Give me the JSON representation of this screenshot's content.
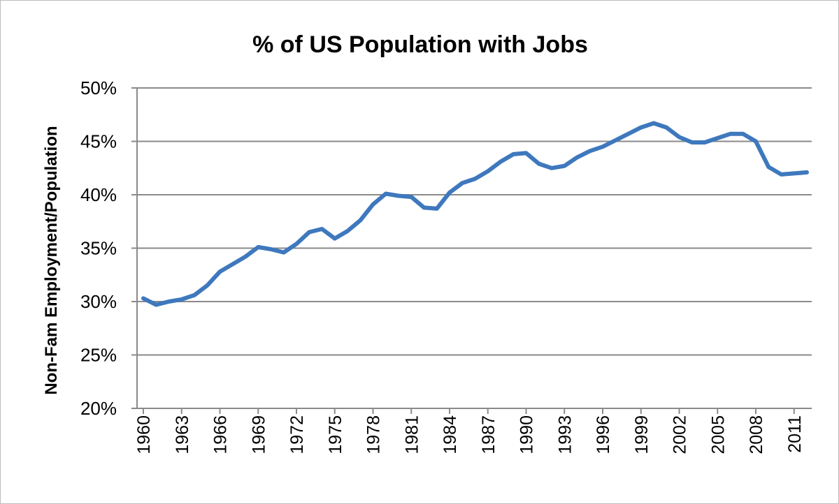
{
  "chart_data": {
    "type": "line",
    "title": "% of US Population with Jobs",
    "xlabel": "",
    "ylabel": "Non-Fam Employment/Population",
    "ylim": [
      20,
      50
    ],
    "yticks": [
      "20%",
      "25%",
      "30%",
      "35%",
      "40%",
      "45%",
      "50%"
    ],
    "ytick_values": [
      20,
      25,
      30,
      35,
      40,
      45,
      50
    ],
    "xticks": [
      "1960",
      "1963",
      "1966",
      "1969",
      "1972",
      "1975",
      "1978",
      "1981",
      "1984",
      "1987",
      "1990",
      "1993",
      "1996",
      "1999",
      "2002",
      "2005",
      "2008",
      "2011"
    ],
    "grid": true,
    "legend": "none",
    "line_color": "#3e78bd",
    "series": [
      {
        "name": "Non-Fam Employment/Population",
        "x": [
          1960,
          1961,
          1962,
          1963,
          1964,
          1965,
          1966,
          1967,
          1968,
          1969,
          1970,
          1971,
          1972,
          1973,
          1974,
          1975,
          1976,
          1977,
          1978,
          1979,
          1980,
          1981,
          1982,
          1983,
          1984,
          1985,
          1986,
          1987,
          1988,
          1989,
          1990,
          1991,
          1992,
          1993,
          1994,
          1995,
          1996,
          1997,
          1998,
          1999,
          2000,
          2001,
          2002,
          2003,
          2004,
          2005,
          2006,
          2007,
          2008,
          2009,
          2010,
          2011,
          2012
        ],
        "values": [
          30.3,
          29.7,
          30.0,
          30.2,
          30.6,
          31.5,
          32.8,
          33.5,
          34.2,
          35.1,
          34.9,
          34.6,
          35.4,
          36.5,
          36.8,
          35.9,
          36.6,
          37.6,
          39.1,
          40.1,
          39.9,
          39.8,
          38.8,
          38.7,
          40.2,
          41.1,
          41.5,
          42.2,
          43.1,
          43.8,
          43.9,
          42.9,
          42.5,
          42.7,
          43.5,
          44.1,
          44.5,
          45.1,
          45.7,
          46.3,
          46.7,
          46.3,
          45.4,
          44.9,
          44.9,
          45.3,
          45.7,
          45.7,
          45.0,
          42.6,
          41.9,
          42.0,
          42.1
        ]
      }
    ]
  }
}
